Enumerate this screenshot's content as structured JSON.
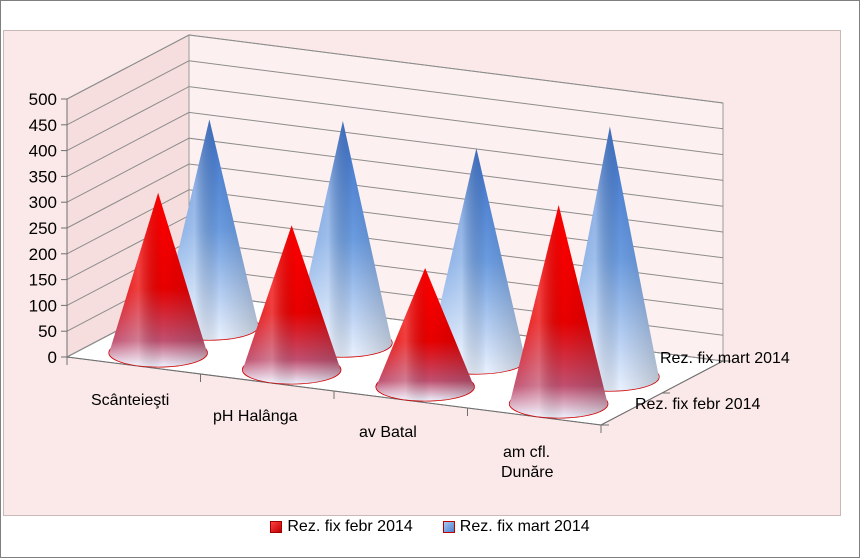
{
  "chart_data": {
    "type": "bar",
    "subtype": "3d-cone",
    "title": "",
    "categories": [
      "Scânteieşti",
      "pH Halânga",
      "av Batal",
      "am cfl. Dunăre"
    ],
    "series": [
      {
        "name": "Rez. fix febr 2014",
        "values": [
          310,
          280,
          230,
          385
        ],
        "color": "#e00000"
      },
      {
        "name": "Rez. fix mart 2014",
        "values": [
          400,
          430,
          410,
          485
        ],
        "color": "#4f86d0"
      }
    ],
    "y_ticks": [
      "0",
      "50",
      "100",
      "150",
      "200",
      "250",
      "300",
      "350",
      "400",
      "450",
      "500"
    ],
    "ylim": [
      0,
      500
    ],
    "grid": true,
    "legend_position": "bottom",
    "depth_axis_labels": [
      "Rez. fix febr 2014",
      "Rez. fix mart 2014"
    ]
  }
}
